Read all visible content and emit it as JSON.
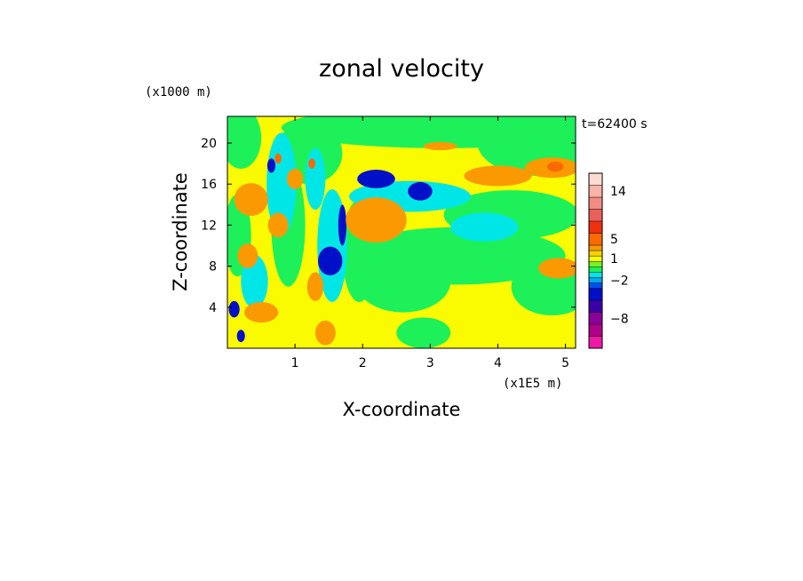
{
  "chart_data": {
    "type": "heatmap",
    "title": "zonal velocity",
    "xlabel": "X-coordinate",
    "ylabel": "Z-coordinate",
    "x_unit": "(x1E5 m)",
    "y_unit": "(x1000 m)",
    "time_label": "t=62400 s",
    "xlim": [
      0,
      5.15
    ],
    "ylim": [
      0,
      22.6
    ],
    "x_ticks": [
      "1",
      "2",
      "3",
      "4",
      "5"
    ],
    "y_ticks": [
      "4",
      "8",
      "12",
      "16",
      "20"
    ],
    "colorbar": {
      "tick_labels": [
        "14",
        "5",
        "1",
        "−2",
        "−8"
      ],
      "levels": [
        {
          "value": -14,
          "color": "#ee1aa6"
        },
        {
          "value": -10,
          "color": "#b0008a"
        },
        {
          "value": -8,
          "color": "#8a0098"
        },
        {
          "value": -6,
          "color": "#3a00a8"
        },
        {
          "value": -4,
          "color": "#0010c8"
        },
        {
          "value": -3,
          "color": "#0050ee"
        },
        {
          "value": -2,
          "color": "#00a8ee"
        },
        {
          "value": -1,
          "color": "#00e6e6"
        },
        {
          "value": 0,
          "color": "#1ef05a"
        },
        {
          "value": 0.5,
          "color": "#7cf01e"
        },
        {
          "value": 1,
          "color": "#fafa00"
        },
        {
          "value": 2,
          "color": "#fad200"
        },
        {
          "value": 3,
          "color": "#fa9a00"
        },
        {
          "value": 5,
          "color": "#fa6a00"
        },
        {
          "value": 7,
          "color": "#f03010"
        },
        {
          "value": 9,
          "color": "#e8605a"
        },
        {
          "value": 11,
          "color": "#f08c84"
        },
        {
          "value": 14,
          "color": "#f8b4a8"
        },
        {
          "value": 18,
          "color": "#fcdcd0"
        }
      ]
    },
    "field_colors": {
      "background": "#fafa00",
      "green": "#1ef05a",
      "cyan": "#00e6e6",
      "blue": "#0010c8",
      "orange": "#fa9a00",
      "red": "#fa6a00"
    }
  }
}
